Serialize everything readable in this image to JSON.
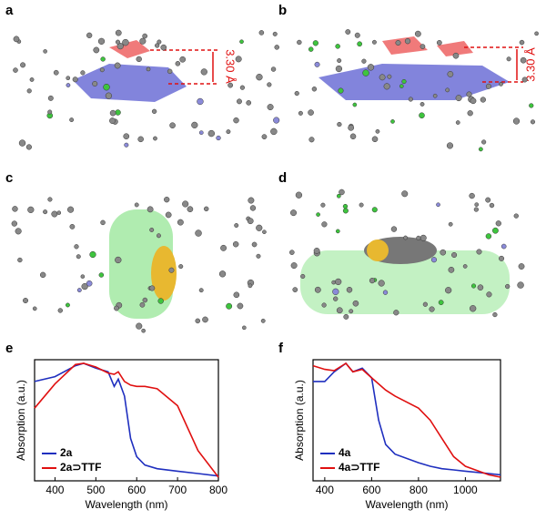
{
  "panels": [
    {
      "label": "a",
      "annotation": "3.30 Å"
    },
    {
      "label": "b",
      "annotation": "3.30 Å"
    },
    {
      "label": "c"
    },
    {
      "label": "d"
    }
  ],
  "chart_data": [
    {
      "type": "line",
      "label": "e",
      "xlabel": "Wavelength (nm)",
      "ylabel": "Absorption (a.u.)",
      "x": [
        350,
        400,
        450,
        470,
        500,
        530,
        545,
        555,
        570,
        585,
        600,
        620,
        650,
        700,
        750,
        800
      ],
      "xlim": [
        350,
        800
      ],
      "xticks": [
        400,
        500,
        600,
        700,
        800
      ],
      "ylim": [
        0,
        1
      ],
      "legend": "lower left",
      "series": [
        {
          "name": "2a",
          "color": "#1f2fbf",
          "values": [
            0.82,
            0.86,
            0.95,
            0.97,
            0.93,
            0.9,
            0.78,
            0.84,
            0.7,
            0.35,
            0.2,
            0.13,
            0.1,
            0.08,
            0.06,
            0.04
          ]
        },
        {
          "name": "2a⊃TTF",
          "color": "#e01010",
          "values": [
            0.6,
            0.8,
            0.96,
            0.97,
            0.94,
            0.89,
            0.88,
            0.9,
            0.82,
            0.79,
            0.78,
            0.78,
            0.76,
            0.62,
            0.25,
            0.03
          ]
        }
      ]
    },
    {
      "type": "line",
      "label": "f",
      "xlabel": "Wavelength (nm)",
      "ylabel": "Absorption (a.u.)",
      "x": [
        350,
        400,
        440,
        490,
        520,
        560,
        600,
        630,
        660,
        700,
        800,
        850,
        900,
        950,
        1000,
        1100,
        1150
      ],
      "xlim": [
        350,
        1150
      ],
      "xticks": [
        400,
        600,
        800,
        1000
      ],
      "ylim": [
        0,
        1
      ],
      "legend": "lower left",
      "series": [
        {
          "name": "4a",
          "color": "#1f2fbf",
          "values": [
            0.82,
            0.82,
            0.9,
            0.97,
            0.9,
            0.93,
            0.85,
            0.5,
            0.3,
            0.22,
            0.15,
            0.12,
            0.1,
            0.09,
            0.08,
            0.06,
            0.05
          ]
        },
        {
          "name": "4a⊃TTF",
          "color": "#e01010",
          "values": [
            0.95,
            0.92,
            0.91,
            0.97,
            0.9,
            0.92,
            0.85,
            0.8,
            0.75,
            0.7,
            0.6,
            0.5,
            0.35,
            0.2,
            0.12,
            0.05,
            0.03
          ]
        }
      ]
    }
  ]
}
